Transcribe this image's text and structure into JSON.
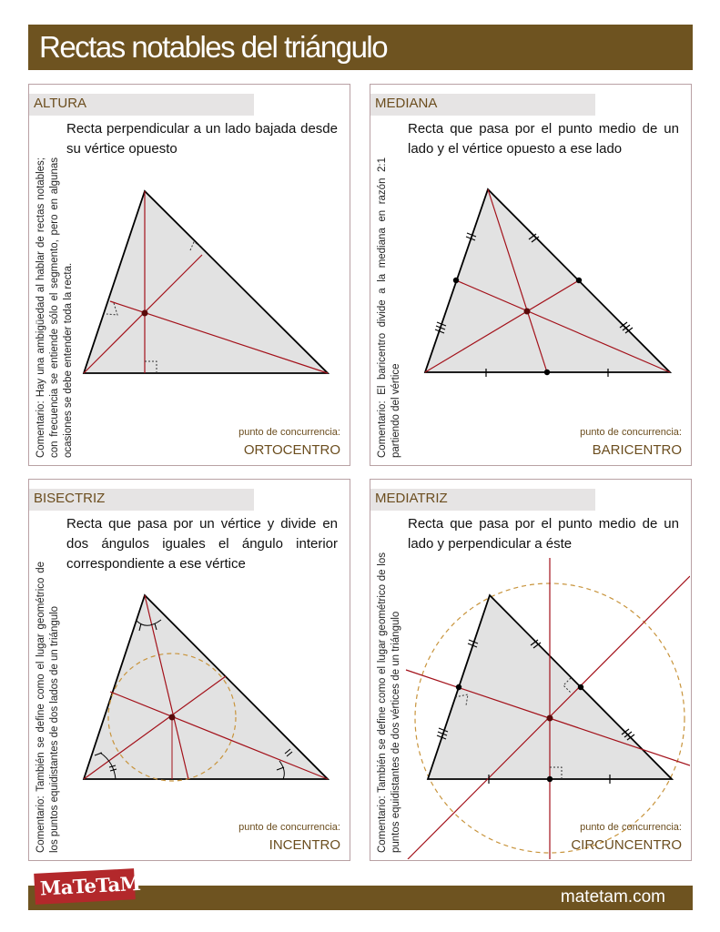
{
  "title": "Rectas notables del triángulo",
  "cards": {
    "altura": {
      "tab": "ALTURA",
      "description": "Recta perpendicular a un lado bajada desde su vértice opuesto",
      "comment": "Comentario: Hay una ambigüedad  al hablar de rectas notables; con frecuencia se entiende sólo el segmento, pero en algunas ocasiones se debe entender toda la recta.",
      "concurrency_label": "punto de concurrencia:",
      "concurrency_point": "ORTOCENTRO"
    },
    "mediana": {
      "tab": "MEDIANA",
      "description": "Recta que pasa por el punto medio de un lado y el vértice opuesto a ese lado",
      "comment": "Comentario: El baricentro divide a la mediana en razón 2:1 partiendo del vértice",
      "concurrency_label": "punto de concurrencia:",
      "concurrency_point": "BARICENTRO"
    },
    "bisectriz": {
      "tab": "BISECTRIZ",
      "description": "Recta que pasa por un vértice y divide en dos ángulos iguales el ángulo interior correspondiente a ese vértice",
      "comment": "Comentario: También se define como el lugar geométrico de los puntos equidistantes de dos lados de un triángulo",
      "concurrency_label": "punto de concurrencia:",
      "concurrency_point": "INCENTRO"
    },
    "mediatriz": {
      "tab": "MEDIATRIZ",
      "description": "Recta que pasa por el punto medio de un lado y perpendicular a éste",
      "comment": "Comentario: También se define como el lugar geométrico de los puntos equidistantes de dos vértices de un triángulo",
      "concurrency_label": "punto de concurrencia:",
      "concurrency_point": "CIRCUNCENTRO"
    }
  },
  "footer": {
    "site": "matetam.com",
    "logo": "MaTeTaM"
  },
  "colors": {
    "brand": "#6e5320",
    "line": "#a3111a",
    "fill": "#e2e2e2",
    "circle": "#c8943c"
  }
}
